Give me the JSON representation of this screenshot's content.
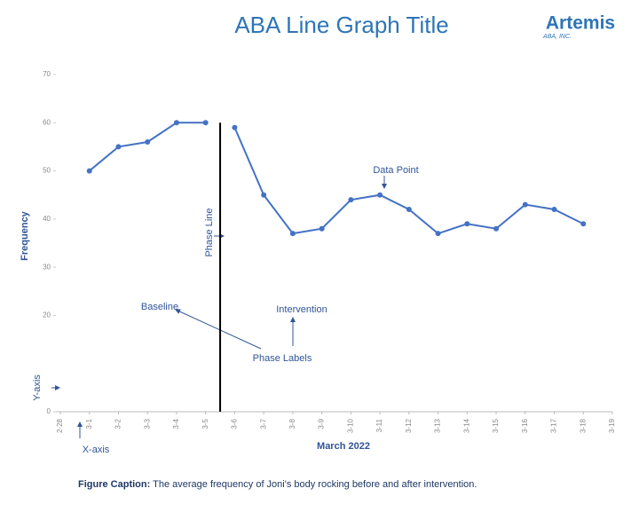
{
  "chart_data": {
    "type": "line",
    "title": "ABA Line Graph Title",
    "logo": {
      "name": "Artemis",
      "sub": "ABA, INC."
    },
    "y_label": "Frequency",
    "x_label": "March 2022",
    "categories": [
      "2-28",
      "3-1",
      "3-2",
      "3-3",
      "3-4",
      "3-5",
      "3-6",
      "3-7",
      "3-8",
      "3-9",
      "3-10",
      "3-11",
      "3-12",
      "3-13",
      "3-14",
      "3-15",
      "3-16",
      "3-17",
      "3-18",
      "3-19"
    ],
    "series": [
      {
        "color": "#4472c4",
        "values": [
          null,
          50,
          55,
          56,
          60,
          60,
          null,
          null,
          null,
          null,
          null,
          null,
          null,
          null,
          null,
          null,
          null,
          null,
          null,
          null
        ]
      },
      {
        "color": "#4472c4",
        "values": [
          null,
          null,
          null,
          null,
          null,
          null,
          59,
          45,
          37,
          38,
          44,
          45,
          42,
          37,
          39,
          38,
          43,
          42,
          39,
          null
        ]
      }
    ],
    "ylim": [
      0,
      70
    ],
    "yticks": [
      0,
      20,
      30,
      40,
      50,
      60,
      70
    ],
    "annotations": {
      "phase_line": "Phase Line",
      "data_point": "Data Point",
      "baseline": "Baseline",
      "intervention": "Intervention",
      "phase_labels": "Phase Labels",
      "y_axis": "Y-axis",
      "x_axis": "X-axis"
    },
    "caption": {
      "label": "Figure Caption:",
      "text": "The average frequency of Joni's body rocking before and after intervention."
    }
  }
}
